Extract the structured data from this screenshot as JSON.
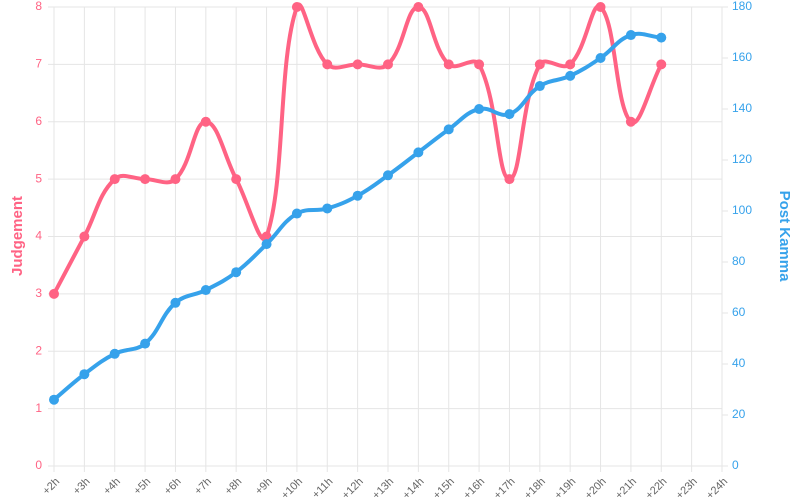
{
  "chart_data": {
    "type": "line",
    "categories": [
      "+2h",
      "+3h",
      "+4h",
      "+5h",
      "+6h",
      "+7h",
      "+8h",
      "+9h",
      "+10h",
      "+11h",
      "+12h",
      "+13h",
      "+14h",
      "+15h",
      "+16h",
      "+17h",
      "+18h",
      "+19h",
      "+20h",
      "+21h",
      "+22h",
      "+23h",
      "+24h"
    ],
    "series": [
      {
        "name": "Judgement",
        "color": "#ff6384",
        "axis": "y",
        "values": [
          3,
          4,
          5,
          5,
          5,
          6,
          5,
          4,
          8,
          7,
          7,
          7,
          8,
          7,
          7,
          5,
          7,
          7,
          8,
          6,
          7,
          null,
          null
        ]
      },
      {
        "name": "Post Kamma",
        "color": "#36a2eb",
        "axis": "y2",
        "values": [
          26,
          36,
          44,
          48,
          64,
          69,
          76,
          87,
          99,
          101,
          106,
          114,
          123,
          132,
          140,
          138,
          149,
          153,
          160,
          169,
          168,
          null,
          null
        ]
      }
    ],
    "ylabel": "Judgement",
    "y2label": "Post Kamma",
    "ylim": [
      0,
      8
    ],
    "yticks": [
      0,
      1,
      2,
      3,
      4,
      5,
      6,
      7,
      8
    ],
    "y2lim": [
      0,
      180
    ],
    "y2ticks": [
      0,
      20,
      40,
      60,
      80,
      100,
      120,
      140,
      160,
      180
    ],
    "grid": true
  }
}
